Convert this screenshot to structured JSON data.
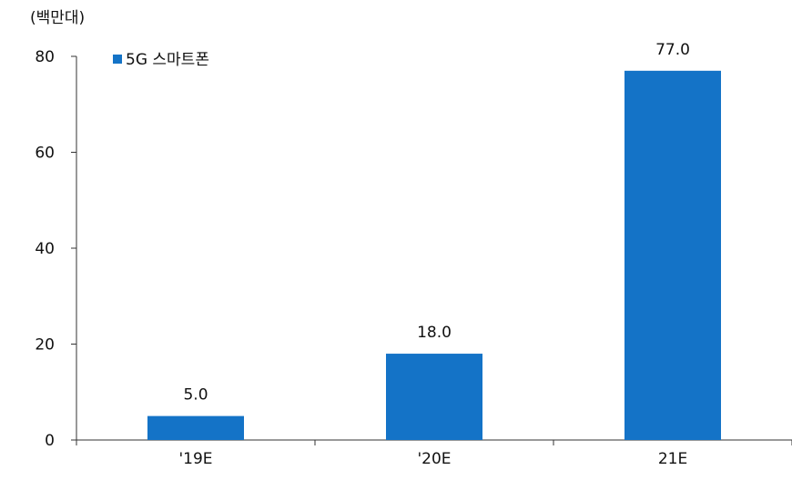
{
  "chart_data": {
    "type": "bar",
    "unit_label": "(백만대)",
    "categories": [
      "'19E",
      "'20E",
      "21E"
    ],
    "series": [
      {
        "name": "5G 스마트폰",
        "values": [
          5.0,
          18.0,
          77.0
        ],
        "value_labels": [
          "5.0",
          "18.0",
          "77.0"
        ],
        "color": "#1473c7"
      }
    ],
    "ylim": [
      0,
      80
    ],
    "yticks": [
      0,
      20,
      40,
      60,
      80
    ],
    "legend": "top-left",
    "grid": false
  }
}
